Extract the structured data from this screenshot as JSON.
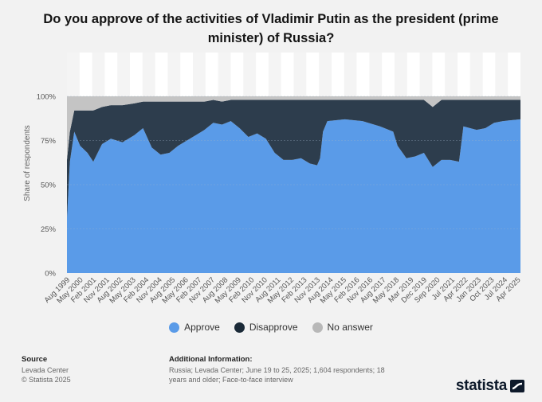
{
  "title": "Do you approve of the activities of Vladimir Putin as the president (prime minister) of Russia?",
  "legend": {
    "approve": "Approve",
    "disapprove": "Disapprove",
    "no_answer": "No answer"
  },
  "source": {
    "heading": "Source",
    "line1": "Levada Center",
    "line2": "© Statista 2025"
  },
  "additional": {
    "heading": "Additional Information:",
    "text": "Russia; Levada Center; June 19 to 25, 2025; 1,604 respondents; 18 years and older; Face-to-face interview"
  },
  "logo": "statista",
  "colors": {
    "approve": "#5a9be8",
    "disapprove": "#2d3d4d",
    "no_answer": "#c4c4c4",
    "background": "#f2f2f2",
    "plot_band_light": "#ffffff",
    "plot_band_dark": "#f4f4f4"
  },
  "chart_data": {
    "type": "area",
    "stacked": true,
    "ylabel": "Share of respondents",
    "ylim": [
      0,
      100
    ],
    "y_ticks": [
      "0%",
      "25%",
      "50%",
      "75%",
      "100%"
    ],
    "x_tick_labels": [
      "Aug 1999",
      "May 2000",
      "Feb 2001",
      "Nov 2001",
      "Aug 2002",
      "May 2003",
      "Feb 2004",
      "Nov 2004",
      "Aug 2005",
      "May 2006",
      "Feb 2007",
      "Nov 2007",
      "Aug 2008",
      "May 2009",
      "Feb 2010",
      "Nov 2010",
      "Aug 2011",
      "May 2012",
      "Feb 2013",
      "Nov 2013",
      "Aug 2014",
      "May 2015",
      "Feb 2016",
      "Nov 2016",
      "Aug 2017",
      "May 2018",
      "Mar 2019",
      "Dec 2019",
      "Sep 2020",
      "Jul 2021",
      "Apr 2022",
      "Jan 2023",
      "Oct 2023",
      "Jul 2024",
      "Apr 2025"
    ],
    "x_range": [
      "Aug 1999",
      "Jun 2025"
    ],
    "series": [
      {
        "name": "Approve",
        "points": [
          [
            "1999-08",
            31
          ],
          [
            "1999-10",
            63
          ],
          [
            "2000-01",
            80
          ],
          [
            "2000-05",
            72
          ],
          [
            "2000-10",
            68
          ],
          [
            "2001-02",
            63
          ],
          [
            "2001-08",
            73
          ],
          [
            "2002-02",
            76
          ],
          [
            "2002-10",
            74
          ],
          [
            "2003-06",
            78
          ],
          [
            "2003-12",
            82
          ],
          [
            "2004-06",
            71
          ],
          [
            "2004-12",
            67
          ],
          [
            "2005-06",
            68
          ],
          [
            "2005-12",
            72
          ],
          [
            "2006-06",
            75
          ],
          [
            "2006-12",
            78
          ],
          [
            "2007-06",
            81
          ],
          [
            "2007-12",
            85
          ],
          [
            "2008-06",
            84
          ],
          [
            "2008-12",
            86
          ],
          [
            "2009-06",
            82
          ],
          [
            "2009-12",
            77
          ],
          [
            "2010-06",
            79
          ],
          [
            "2010-12",
            76
          ],
          [
            "2011-06",
            68
          ],
          [
            "2011-12",
            64
          ],
          [
            "2012-06",
            64
          ],
          [
            "2012-12",
            65
          ],
          [
            "2013-06",
            62
          ],
          [
            "2013-11",
            61
          ],
          [
            "2014-01",
            65
          ],
          [
            "2014-03",
            80
          ],
          [
            "2014-06",
            86
          ],
          [
            "2015-06",
            87
          ],
          [
            "2016-06",
            86
          ],
          [
            "2017-06",
            83
          ],
          [
            "2018-03",
            80
          ],
          [
            "2018-06",
            72
          ],
          [
            "2018-12",
            65
          ],
          [
            "2019-06",
            66
          ],
          [
            "2019-12",
            68
          ],
          [
            "2020-06",
            60
          ],
          [
            "2020-12",
            64
          ],
          [
            "2021-06",
            64
          ],
          [
            "2021-12",
            63
          ],
          [
            "2022-03",
            83
          ],
          [
            "2022-12",
            81
          ],
          [
            "2023-06",
            82
          ],
          [
            "2023-12",
            85
          ],
          [
            "2024-06",
            86
          ],
          [
            "2025-06",
            87
          ]
        ]
      },
      {
        "name": "Disapprove",
        "points": [
          [
            "1999-08",
            33
          ],
          [
            "1999-10",
            17
          ],
          [
            "2000-01",
            12
          ],
          [
            "2000-05",
            20
          ],
          [
            "2000-10",
            24
          ],
          [
            "2001-02",
            29
          ],
          [
            "2001-08",
            21
          ],
          [
            "2002-02",
            19
          ],
          [
            "2002-10",
            21
          ],
          [
            "2003-06",
            18
          ],
          [
            "2003-12",
            15
          ],
          [
            "2004-06",
            26
          ],
          [
            "2004-12",
            30
          ],
          [
            "2005-06",
            29
          ],
          [
            "2005-12",
            25
          ],
          [
            "2006-06",
            22
          ],
          [
            "2006-12",
            19
          ],
          [
            "2007-06",
            16
          ],
          [
            "2007-12",
            13
          ],
          [
            "2008-06",
            13
          ],
          [
            "2008-12",
            12
          ],
          [
            "2009-06",
            16
          ],
          [
            "2009-12",
            21
          ],
          [
            "2010-06",
            19
          ],
          [
            "2010-12",
            22
          ],
          [
            "2011-06",
            30
          ],
          [
            "2011-12",
            34
          ],
          [
            "2012-06",
            34
          ],
          [
            "2012-12",
            33
          ],
          [
            "2013-06",
            36
          ],
          [
            "2013-11",
            37
          ],
          [
            "2014-01",
            33
          ],
          [
            "2014-03",
            18
          ],
          [
            "2014-06",
            12
          ],
          [
            "2015-06",
            11
          ],
          [
            "2016-06",
            12
          ],
          [
            "2017-06",
            15
          ],
          [
            "2018-03",
            18
          ],
          [
            "2018-06",
            26
          ],
          [
            "2018-12",
            33
          ],
          [
            "2019-06",
            32
          ],
          [
            "2019-12",
            30
          ],
          [
            "2020-06",
            34
          ],
          [
            "2020-12",
            34
          ],
          [
            "2021-06",
            34
          ],
          [
            "2021-12",
            35
          ],
          [
            "2022-03",
            15
          ],
          [
            "2022-12",
            17
          ],
          [
            "2023-06",
            16
          ],
          [
            "2023-12",
            13
          ],
          [
            "2024-06",
            12
          ],
          [
            "2025-06",
            11
          ]
        ]
      },
      {
        "name": "No answer",
        "points": [
          [
            "1999-08",
            36
          ],
          [
            "1999-10",
            20
          ],
          [
            "2000-01",
            8
          ],
          [
            "2000-05",
            8
          ],
          [
            "2000-10",
            8
          ],
          [
            "2001-02",
            8
          ],
          [
            "2001-08",
            6
          ],
          [
            "2002-02",
            5
          ],
          [
            "2002-10",
            5
          ],
          [
            "2003-06",
            4
          ],
          [
            "2003-12",
            3
          ],
          [
            "2004-06",
            3
          ],
          [
            "2004-12",
            3
          ],
          [
            "2005-06",
            3
          ],
          [
            "2005-12",
            3
          ],
          [
            "2006-06",
            3
          ],
          [
            "2006-12",
            3
          ],
          [
            "2007-06",
            3
          ],
          [
            "2007-12",
            2
          ],
          [
            "2008-06",
            3
          ],
          [
            "2008-12",
            2
          ],
          [
            "2009-06",
            2
          ],
          [
            "2009-12",
            2
          ],
          [
            "2010-06",
            2
          ],
          [
            "2010-12",
            2
          ],
          [
            "2011-06",
            2
          ],
          [
            "2011-12",
            2
          ],
          [
            "2012-06",
            2
          ],
          [
            "2012-12",
            2
          ],
          [
            "2013-06",
            2
          ],
          [
            "2013-11",
            2
          ],
          [
            "2014-01",
            2
          ],
          [
            "2014-03",
            2
          ],
          [
            "2014-06",
            2
          ],
          [
            "2015-06",
            2
          ],
          [
            "2016-06",
            2
          ],
          [
            "2017-06",
            2
          ],
          [
            "2018-03",
            2
          ],
          [
            "2018-06",
            2
          ],
          [
            "2018-12",
            2
          ],
          [
            "2019-06",
            2
          ],
          [
            "2019-12",
            2
          ],
          [
            "2020-06",
            6
          ],
          [
            "2020-12",
            2
          ],
          [
            "2021-06",
            2
          ],
          [
            "2021-12",
            2
          ],
          [
            "2022-03",
            2
          ],
          [
            "2022-12",
            2
          ],
          [
            "2023-06",
            2
          ],
          [
            "2023-12",
            2
          ],
          [
            "2024-06",
            2
          ],
          [
            "2025-06",
            2
          ]
        ]
      }
    ],
    "legend_position": "bottom",
    "grid": true
  }
}
